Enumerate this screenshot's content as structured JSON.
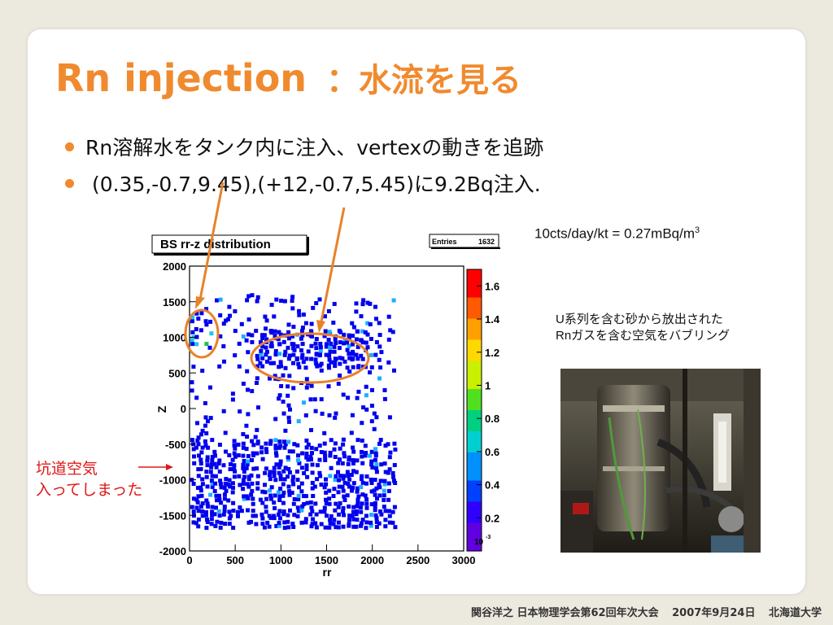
{
  "slide": {
    "title_main": "Rn injection",
    "title_sub": "：水流を見る",
    "bullets": [
      "Rn溶解水をタンク内に注入、vertexの動きを追跡",
      " (0.35,-0.7,9.45),(+12,-0.7,5.45)に9.2Bq注入."
    ],
    "rate_text": "10cts/day/kt = 0.27mBq/m",
    "rate_sup": "3",
    "photo_caption": [
      "U系列を含む砂から放出された",
      "Rnガスを含む空気をバブリング"
    ],
    "note": [
      "坑道空気",
      "入ってしまった"
    ],
    "footer": [
      "関谷洋之 日本物理学会第62回年次大会",
      "2007年9月24日",
      "北海道大学"
    ]
  },
  "colors": {
    "accent": "#f08a2e",
    "note": "#e01818",
    "marker": "#0000ee"
  },
  "chart_data": {
    "type": "heatmap",
    "title": "BS rr-z distribution",
    "stats_label": "Entries",
    "stats_value": "1632",
    "xlabel": "rr",
    "ylabel": "Z",
    "xlim": [
      0,
      3000
    ],
    "ylim": [
      -2000,
      2000
    ],
    "xticks": [
      "0",
      "500",
      "1000",
      "1500",
      "2000",
      "2500",
      "3000"
    ],
    "yticks": [
      "2000",
      "1500",
      "1000",
      "500",
      "0",
      "-500",
      "-1000",
      "-1500",
      "-2000"
    ],
    "zlim": [
      0.0,
      1.7
    ],
    "zticks": [
      "1.6",
      "1.4",
      "1.2",
      "1",
      "0.8",
      "0.6",
      "0.4",
      "0.2"
    ],
    "z_exponent": "10",
    "z_exponent_power": "-3",
    "regions": [
      {
        "name": "lower-dense",
        "rr": [
          0,
          2250
        ],
        "z": [
          -1650,
          -400
        ],
        "density": 0.55
      },
      {
        "name": "middle-sparse",
        "rr": [
          0,
          2250
        ],
        "z": [
          -400,
          600
        ],
        "density": 0.13
      },
      {
        "name": "upper-sparse",
        "rr": [
          250,
          2250
        ],
        "z": [
          600,
          1600
        ],
        "density": 0.16
      },
      {
        "name": "blob",
        "rr": [
          700,
          1950
        ],
        "z": [
          600,
          1100
        ],
        "density": 0.45
      },
      {
        "name": "corner",
        "rr": [
          0,
          250
        ],
        "z": [
          850,
          1450
        ],
        "density": 0.4
      }
    ]
  }
}
